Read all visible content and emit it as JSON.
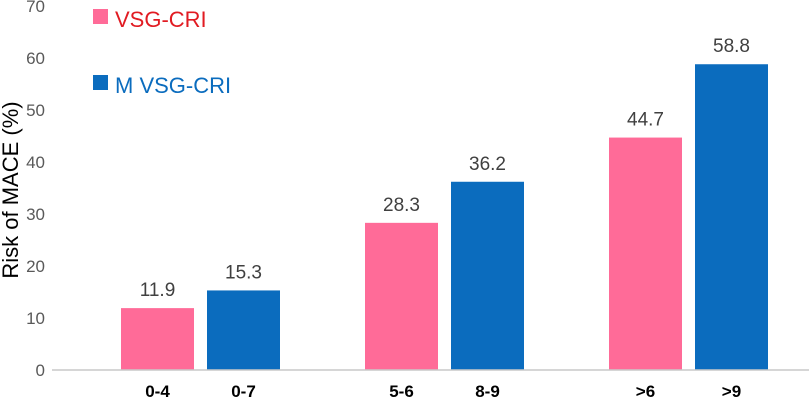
{
  "chart_data": {
    "type": "bar",
    "ylabel": "Risk of MACE (%)",
    "ylim": [
      0,
      70
    ],
    "yticks": [
      0,
      10,
      20,
      30,
      40,
      50,
      60,
      70
    ],
    "grid": false,
    "legend_position": "top-left",
    "categories": [
      "0-4",
      "0-7",
      "5-6",
      "8-9",
      ">6",
      ">9"
    ],
    "series": [
      {
        "name": "VSG-CRI",
        "color": "#FF6B98"
      },
      {
        "name": "M VSG-CRI",
        "color": "#0B6CBE"
      }
    ],
    "bars": [
      {
        "category": "0-4",
        "series": "VSG-CRI",
        "value": 11.9,
        "label": "11.9"
      },
      {
        "category": "0-7",
        "series": "M VSG-CRI",
        "value": 15.3,
        "label": "15.3"
      },
      {
        "category": "5-6",
        "series": "VSG-CRI",
        "value": 28.3,
        "label": "28.3"
      },
      {
        "category": "8-9",
        "series": "M VSG-CRI",
        "value": 36.2,
        "label": "36.2"
      },
      {
        "category": ">6",
        "series": "VSG-CRI",
        "value": 44.7,
        "label": "44.7"
      },
      {
        "category": ">9",
        "series": "M VSG-CRI",
        "value": 58.8,
        "label": "58.8"
      }
    ],
    "legend_text_colors": [
      "#E11B22",
      "#0B6CBE"
    ],
    "axis_color": "#C9C9C9",
    "tick_label_color": "#595959",
    "data_label_color": "#404040"
  }
}
